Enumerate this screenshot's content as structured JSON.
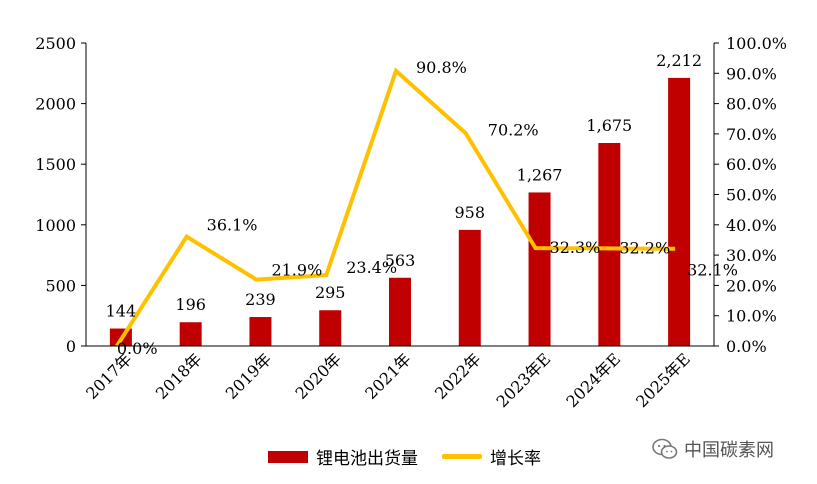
{
  "chart_data": {
    "type": "bar",
    "categories": [
      "2017年",
      "2018年",
      "2019年",
      "2020年",
      "2021年",
      "2022年",
      "2023年E",
      "2024年E",
      "2025年E"
    ],
    "series": [
      {
        "name": "锂电池出货量",
        "type": "bar",
        "axis": "left",
        "values": [
          144,
          196,
          239,
          295,
          563,
          958,
          1267,
          1675,
          2212
        ],
        "labels": [
          "144",
          "196",
          "239",
          "295",
          "563",
          "958",
          "1,267",
          "1,675",
          "2,212"
        ],
        "color": "#C00000"
      },
      {
        "name": "增长率",
        "type": "line",
        "axis": "right",
        "values": [
          0.0,
          36.1,
          21.9,
          23.4,
          90.8,
          70.2,
          32.3,
          32.2,
          32.1
        ],
        "labels": [
          "0.0%",
          "36.1%",
          "21.9%",
          "23.4%",
          "90.8%",
          "70.2%",
          "32.3%",
          "32.2%",
          "32.1%"
        ],
        "color": "#FFC000"
      }
    ],
    "ylim": [
      0,
      2500
    ],
    "yticks": [
      "0",
      "500",
      "1000",
      "1500",
      "2000",
      "2500"
    ],
    "y2lim": [
      0,
      100
    ],
    "y2ticks": [
      "0.0%",
      "10.0%",
      "20.0%",
      "30.0%",
      "40.0%",
      "50.0%",
      "60.0%",
      "70.0%",
      "80.0%",
      "90.0%",
      "100.0%"
    ],
    "grid": false,
    "legend": "bottom"
  },
  "watermark": {
    "text": "中国碳素网",
    "icon": "wechat-icon"
  }
}
